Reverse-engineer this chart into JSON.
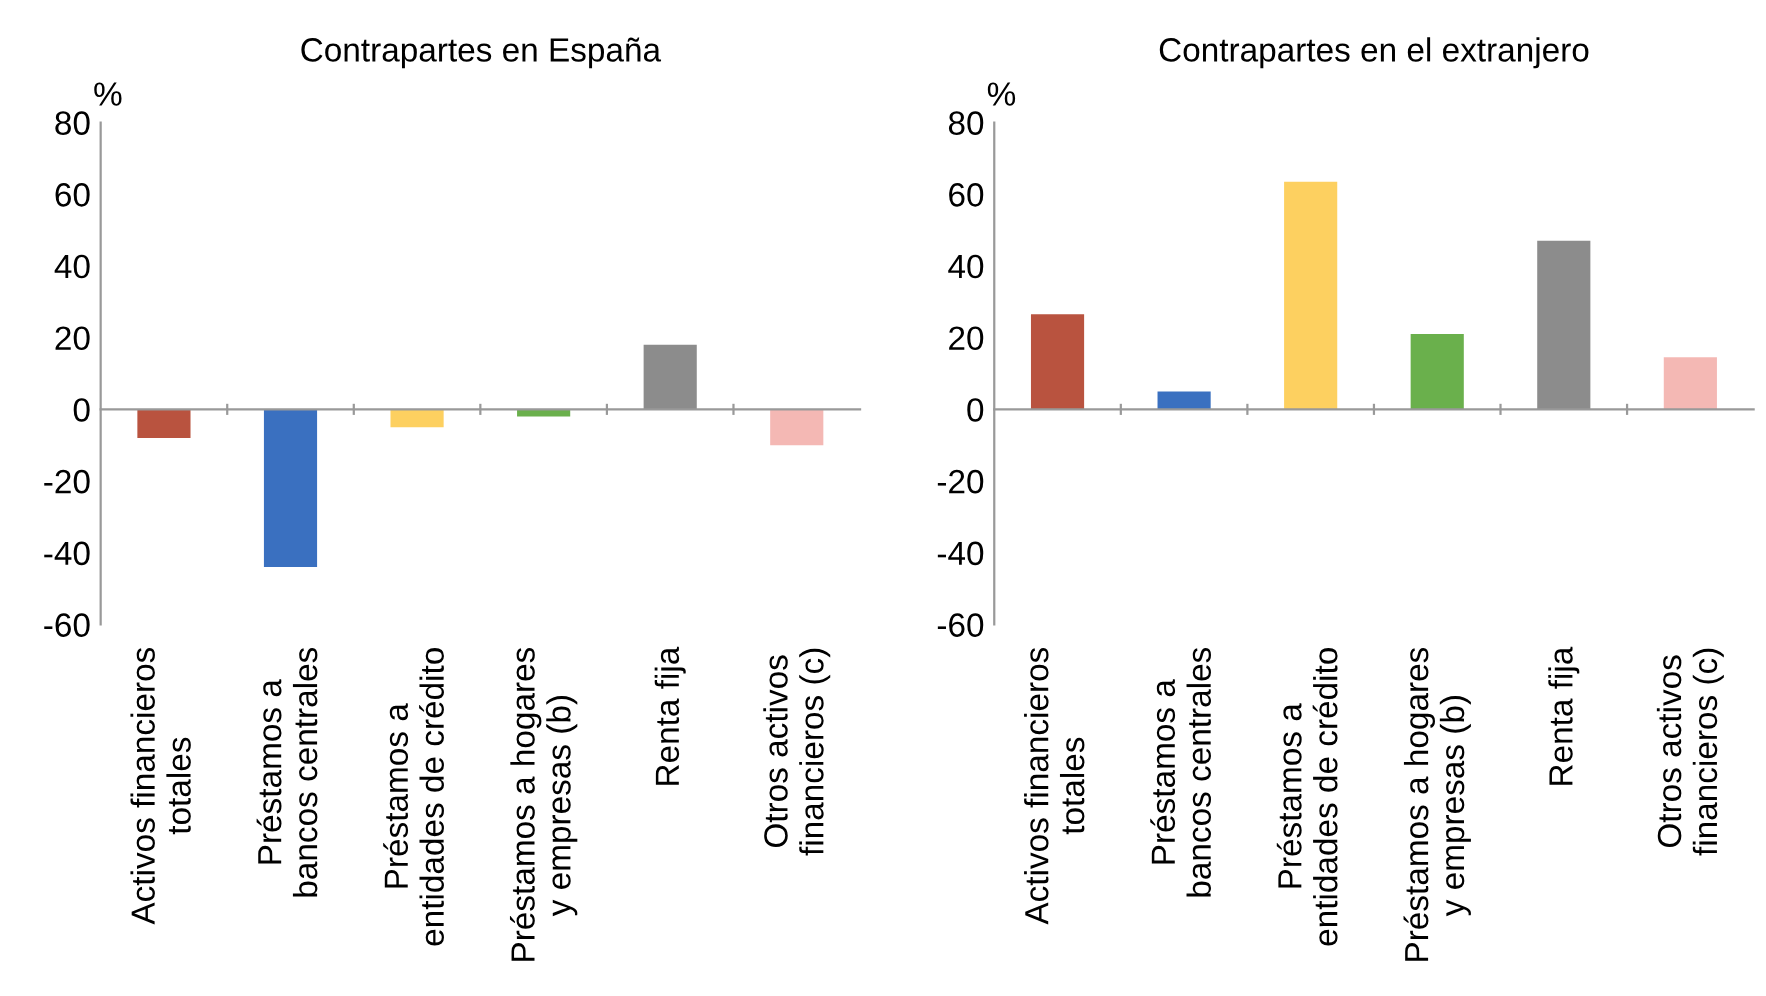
{
  "chart_data": [
    {
      "type": "bar",
      "title": "Contrapartes en España",
      "ylabel": "%",
      "categories": [
        "Activos financieros\ntotales",
        "Préstamos a\nbancos centrales",
        "Préstamos a\nentidades de crédito",
        "Préstamos a hogares\ny empresas (b)",
        "Renta fija",
        "Otros activos\nfinancieros (c)"
      ],
      "values": [
        -8,
        -44,
        -5,
        -2,
        18,
        -10
      ],
      "colors": [
        "#b9533f",
        "#3a70c0",
        "#fdd060",
        "#6ab04c",
        "#8c8c8c",
        "#f4b8b4"
      ],
      "ylim": [
        -60,
        80
      ],
      "yticks": [
        -60,
        -40,
        -20,
        0,
        20,
        40,
        60,
        80
      ],
      "legend": false
    },
    {
      "type": "bar",
      "title": "Contrapartes en el extranjero",
      "ylabel": "%",
      "categories": [
        "Activos financieros\ntotales",
        "Préstamos a\nbancos centrales",
        "Préstamos a\nentidades de crédito",
        "Préstamos a hogares\ny empresas (b)",
        "Renta fija",
        "Otros activos\nfinancieros (c)"
      ],
      "values": [
        26.5,
        5,
        63.5,
        21,
        47,
        14.5
      ],
      "colors": [
        "#b9533f",
        "#3a70c0",
        "#fdd060",
        "#6ab04c",
        "#8c8c8c",
        "#f4b8b4"
      ],
      "ylim": [
        -60,
        80
      ],
      "yticks": [
        -60,
        -40,
        -20,
        0,
        20,
        40,
        60,
        80
      ],
      "legend": false
    }
  ]
}
